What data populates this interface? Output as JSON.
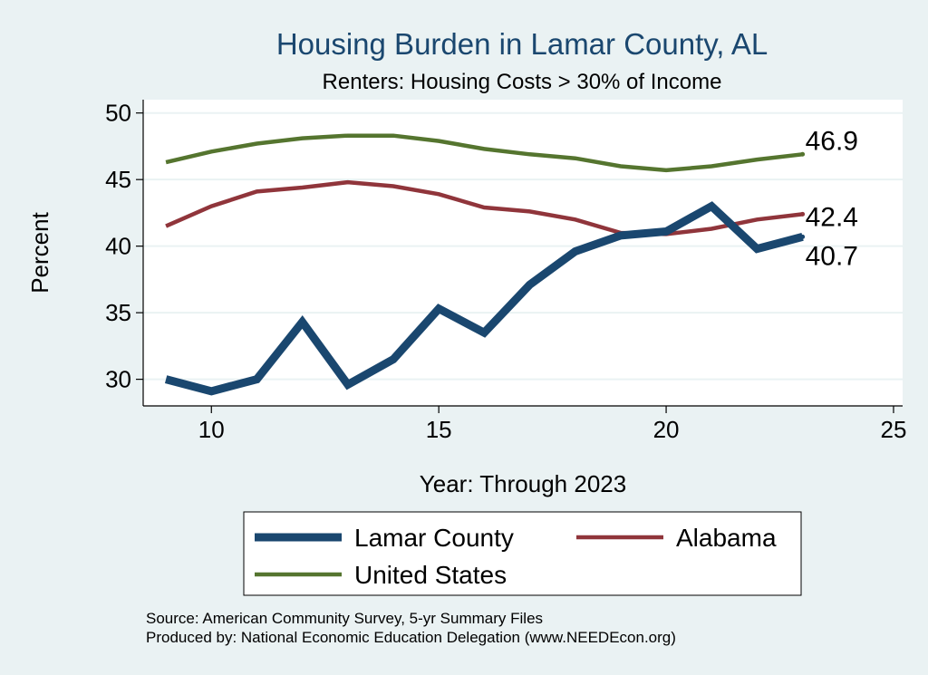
{
  "chart_data": {
    "type": "line",
    "title": "Housing Burden in Lamar County, AL",
    "subtitle": "Renters: Housing Costs > 30% of Income",
    "xlabel": "Year: Through 2023",
    "ylabel": "Percent",
    "xlim": [
      8.5,
      25.2
    ],
    "ylim": [
      28,
      51
    ],
    "x_ticks": [
      10,
      15,
      20,
      25
    ],
    "y_ticks": [
      30,
      35,
      40,
      45,
      50
    ],
    "grid": true,
    "x": [
      9,
      10,
      11,
      12,
      13,
      14,
      15,
      16,
      17,
      18,
      19,
      20,
      21,
      22,
      23
    ],
    "series": [
      {
        "name": "Lamar County",
        "color": "#1a476f",
        "values": [
          30.0,
          29.1,
          30.0,
          34.3,
          29.6,
          31.5,
          35.3,
          33.5,
          37.1,
          39.6,
          40.8,
          41.1,
          43.0,
          39.8,
          40.7
        ],
        "end_label": "40.7"
      },
      {
        "name": "Alabama",
        "color": "#90353b",
        "values": [
          41.5,
          43.0,
          44.1,
          44.4,
          44.8,
          44.5,
          43.9,
          42.9,
          42.6,
          42.0,
          41.0,
          40.9,
          41.3,
          42.0,
          42.4
        ],
        "end_label": "42.4"
      },
      {
        "name": "United States",
        "color": "#55752f",
        "values": [
          46.3,
          47.1,
          47.7,
          48.1,
          48.3,
          48.3,
          47.9,
          47.3,
          46.9,
          46.6,
          46.0,
          45.7,
          46.0,
          46.5,
          46.9
        ],
        "end_label": "46.9"
      }
    ],
    "legend": [
      "Lamar County",
      "Alabama",
      "United States"
    ]
  },
  "notes": {
    "source": "Source: American Community Survey, 5-yr Summary Files",
    "produced": "Produced by: National Economic Education Delegation (www.NEEDEcon.org)"
  }
}
